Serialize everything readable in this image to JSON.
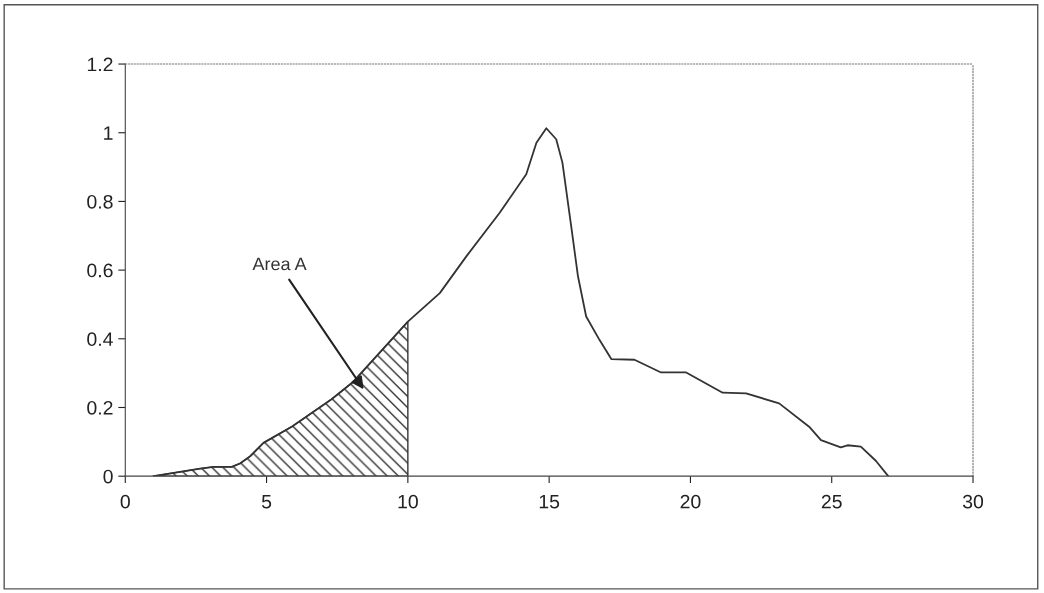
{
  "chart_data": {
    "type": "line",
    "xlim": [
      0,
      30
    ],
    "xticks": [
      0,
      5,
      10,
      15,
      20,
      25,
      30
    ],
    "ylim": [
      0,
      1.2
    ],
    "yticks": [
      0,
      0.2,
      0.4,
      0.6,
      0.8,
      1,
      1.2
    ],
    "grid": false,
    "legend": false,
    "marker": "none",
    "line_style": "solid",
    "series": [
      {
        "color": "#333333",
        "x": [
          1.0,
          2.65,
          3.12,
          3.77,
          4.06,
          4.42,
          4.89,
          5.89,
          7.3,
          8.07,
          10.0,
          11.13,
          12.07,
          13.25,
          14.19,
          14.55,
          14.9,
          15.25,
          15.47,
          15.78,
          16.02,
          16.31,
          16.78,
          17.2,
          18.02,
          18.96,
          19.85,
          21.14,
          21.97,
          23.14,
          24.2,
          24.62,
          25.32,
          25.56,
          26.03,
          26.56,
          27.0
        ],
        "values": [
          0,
          0.022,
          0.027,
          0.027,
          0.037,
          0.058,
          0.097,
          0.144,
          0.224,
          0.275,
          0.45,
          0.533,
          0.64,
          0.767,
          0.879,
          0.971,
          1.013,
          0.981,
          0.913,
          0.728,
          0.582,
          0.465,
          0.397,
          0.341,
          0.339,
          0.302,
          0.302,
          0.243,
          0.241,
          0.212,
          0.144,
          0.105,
          0.084,
          0.09,
          0.086,
          0.045,
          0
        ]
      },
      {
        "type": "area",
        "color": "#333333",
        "x": [
          1.0,
          2.65,
          3.12,
          3.77,
          4.06,
          4.42,
          4.89,
          5.89,
          7.3,
          8.07,
          10.0
        ],
        "values": [
          0,
          0.022,
          0.027,
          0.027,
          0.037,
          0.058,
          0.097,
          0.144,
          0.224,
          0.275,
          0.45
        ]
      }
    ],
    "annotations": [
      "Area A"
    ]
  }
}
